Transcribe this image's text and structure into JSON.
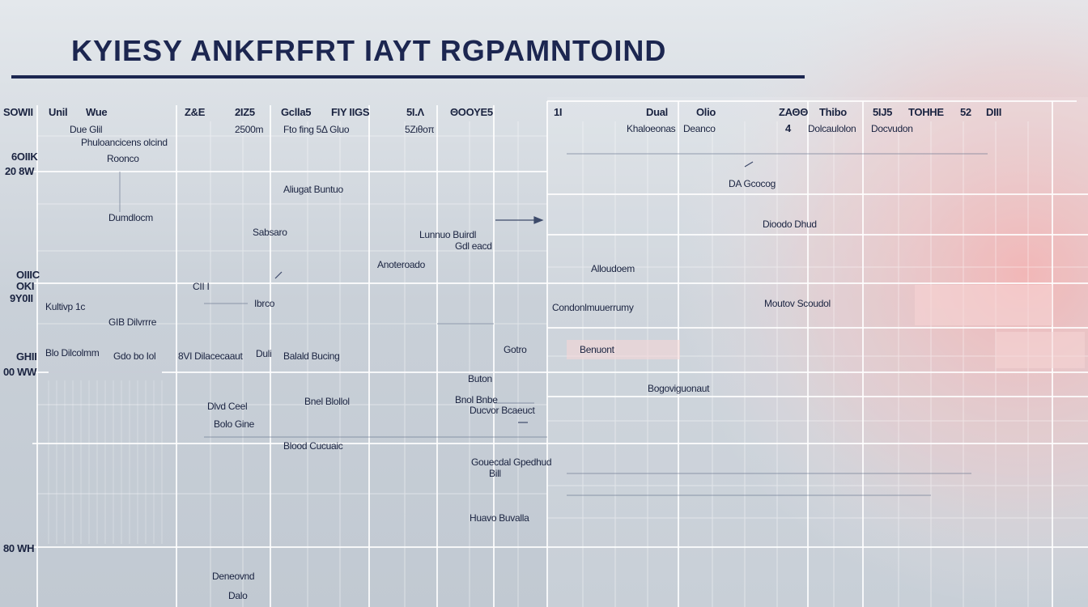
{
  "colors": {
    "title": "#1c2650",
    "text": "#1a2340",
    "grid_line": "#ffffff",
    "thin_line": "#6b7790",
    "background_left": "#c4ccd4",
    "background_right_tint": "#f3b6b4",
    "label_tint": "#fbd6d4"
  },
  "title": "KYIESY ANKFRFRT IAYT RGPAMNTOIND",
  "left_panel": {
    "header_row1": [
      "SOWII",
      "Unil",
      "Wue",
      "Ζ&Ε",
      "2ΙΖ5",
      "Gclla5",
      "FIY IIGS",
      "5Ι.Λ",
      "ΘΟΟΥΕ5"
    ],
    "header_row2": [
      "Due Glil",
      "2500m",
      "Fto fing 5Δ Gluo",
      "5Ζιθοπ"
    ],
    "row_labels": [
      "6OIIK",
      "20 8W",
      "OIIIC",
      "OKI",
      "9Y0II",
      "GHII",
      "00 WW",
      "80 WH"
    ],
    "cells": [
      "Phuloancicens olcind",
      "Roonco",
      "Dumdlocm",
      "Aliugat Buntuo",
      "Sabsaro",
      "Lunnuo Buirdl",
      "Gdl eacd",
      "Anoteroado",
      "Kultivp 1c",
      "GIB Dilvrrre",
      "CII I",
      "Ibrco",
      "Blo Dilcolmm",
      "Gdo bo Iol",
      "8VI Dilacecaaut",
      "Duli",
      "Balald Bucing",
      "Gotro",
      "Buton",
      "Dlvd Ceel",
      "Bolo Gine",
      "Bnel Blollol",
      "Bnol Bnbe",
      "Ducvor Bcaeuct",
      "Blood Cucuaic",
      "Gouecdal Gpedhud",
      "Bill",
      "Huavo Buvalla",
      "Deneovnd",
      "Dalo"
    ]
  },
  "right_panel": {
    "header_row1": [
      "1Ι",
      "Dual",
      "Olio",
      "ΖΑΘΘ",
      "Thibo",
      "5IJ5",
      "TOHHE",
      "52",
      "DIIΙ"
    ],
    "header_row2": [
      "Khaloeonas",
      "Deanco",
      "4",
      "Dolcaulolon",
      "Docvudon"
    ],
    "cells": [
      "DA Gcocog",
      "Dioodo Dhud",
      "Alloudoem",
      "Condonlmuuerrumy",
      "Moutov Scoudol",
      "Benuont",
      "Bogoviguonaut"
    ]
  }
}
